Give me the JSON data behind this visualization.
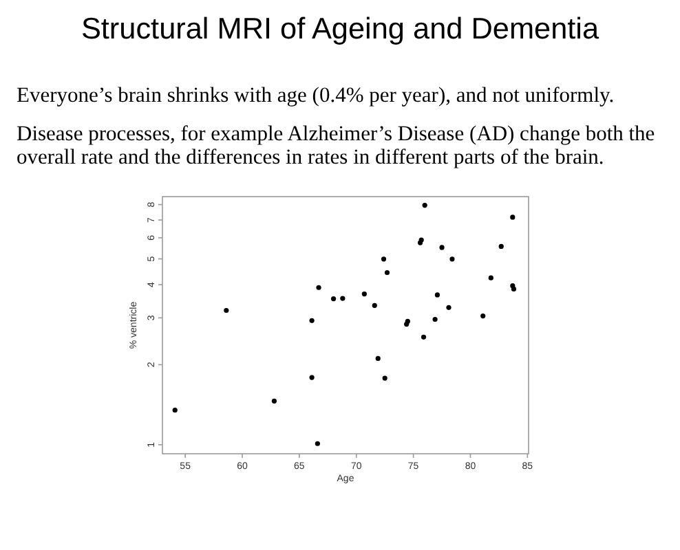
{
  "chart_data": {
    "type": "scatter",
    "title": "Structural MRI of Ageing and Dementia",
    "subtitle": "Everyone’s brain shrinks with age (0.4% per year), and not uniformly.",
    "annotations": [
      "Disease processes, for example Alzheimer’s Disease (AD) change both the overall rate and the differences in rates in different parts of the brain."
    ],
    "xlabel": "Age",
    "ylabel": "% ventricle",
    "x": [
      54.1,
      58.6,
      62.8,
      66.1,
      66.1,
      66.6,
      66.7,
      68.0,
      68.8,
      70.7,
      71.6,
      71.9,
      72.4,
      72.5,
      72.7,
      74.4,
      74.5,
      75.6,
      75.7,
      75.9,
      76.0,
      76.9,
      77.1,
      77.5,
      78.1,
      78.4,
      81.1,
      81.8,
      82.7,
      83.7,
      83.7,
      83.8
    ],
    "values": [
      1.35,
      3.2,
      1.46,
      2.93,
      1.79,
      1.01,
      3.9,
      3.54,
      3.55,
      3.69,
      3.34,
      2.11,
      4.99,
      1.78,
      4.44,
      2.84,
      2.91,
      5.75,
      5.89,
      2.54,
      7.95,
      2.96,
      3.66,
      5.52,
      3.28,
      4.99,
      3.05,
      4.24,
      5.57,
      7.17,
      3.96,
      3.85
    ],
    "color": "#000000",
    "xlim": [
      53,
      85.1
    ],
    "ylim": [
      0.925,
      8.57
    ],
    "xticks": [
      55,
      60,
      65,
      70,
      75,
      80,
      85
    ],
    "yticks": [
      1,
      2,
      3,
      4,
      5,
      6,
      7,
      8
    ],
    "log": "y",
    "marker": "circle",
    "grid": false
  }
}
